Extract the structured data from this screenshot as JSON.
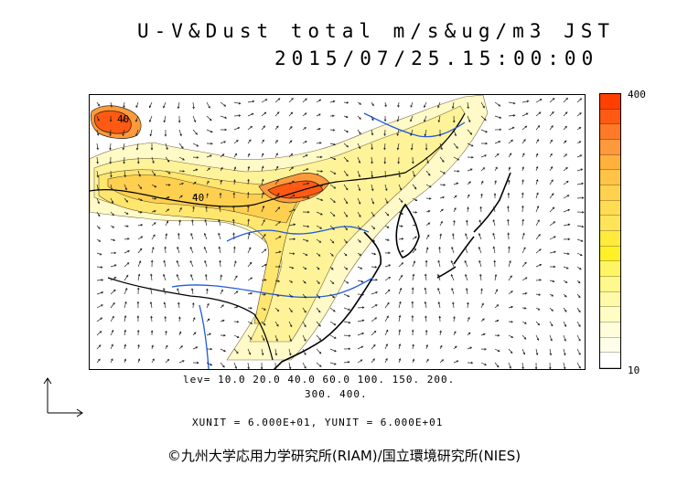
{
  "title": {
    "line1": "U-V&Dust total m/s&ug/m3 JST",
    "line2": "2015/07/25.15:00:00"
  },
  "colorbar": {
    "max_label": "400",
    "min_label": "10",
    "colors": [
      "#ff4000",
      "#ff5a14",
      "#ff7a28",
      "#ff9a3c",
      "#ffb13c",
      "#ffc446",
      "#ffd24e",
      "#ffdc52",
      "#ffe45a",
      "#ffeb3c",
      "#fff028",
      "#fff564",
      "#fff88c",
      "#fffaa8",
      "#fffcc4",
      "#fffddc",
      "#fffee8",
      "#ffffff"
    ]
  },
  "legend": {
    "lev_line1": "lev= 10.0 20.0 40.0 60.0 100. 150. 200.",
    "lev_line2": "300. 400.",
    "units": "XUNIT = 6.000E+01, YUNIT = 6.000E+01"
  },
  "map": {
    "contour_labels": [
      "40",
      "40"
    ],
    "colors": {
      "coast": "#000000",
      "river": "#1e5adc",
      "dust_low": "#fffac8",
      "dust_mid": "#ffe680",
      "dust_high": "#ffb43c",
      "dust_peak": "#ff5a14"
    }
  },
  "credit": "©九州大学応用力学研究所(RIAM)/国立環境研究所(NIES)"
}
